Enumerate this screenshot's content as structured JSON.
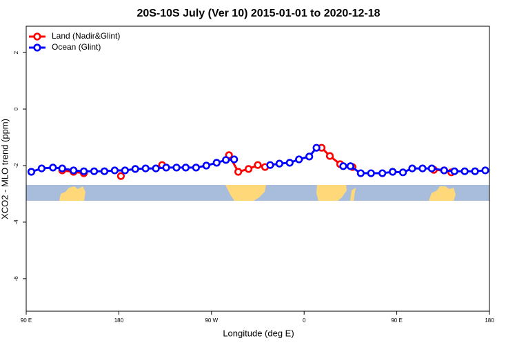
{
  "chart_data": {
    "type": "line",
    "title": "20S-10S July (Ver 10)   2015-01-01 to 2020-12-18",
    "x_label": "Longitude (deg E)",
    "y_label": "XCO2 - MLO trend (ppm)",
    "xlim": [
      90,
      540
    ],
    "xticks": [
      {
        "value": 90,
        "label": "90 E"
      },
      {
        "value": 180,
        "label": "180"
      },
      {
        "value": 270,
        "label": "90 W"
      },
      {
        "value": 360,
        "label": "0"
      },
      {
        "value": 450,
        "label": "90 E"
      },
      {
        "value": 540,
        "label": "180"
      }
    ],
    "ylim": [
      -7.15,
      2.93
    ],
    "yticks": [
      -6,
      -4,
      -2,
      0,
      2
    ],
    "legend": "top-left",
    "series": [
      {
        "name": "Land (Nadir&Glint)",
        "color": "#ff0000",
        "x": [
          125,
          136,
          146,
          null,
          182,
          null,
          222,
          null,
          287,
          296,
          306,
          315,
          322,
          null,
          377,
          385,
          395,
          407,
          null,
          486,
          496,
          503
        ],
        "values": [
          -2.17,
          -2.22,
          -2.27,
          null,
          -2.37,
          null,
          -1.98,
          null,
          -1.63,
          -2.22,
          -2.12,
          -1.98,
          -2.05,
          null,
          -1.37,
          -1.66,
          -1.95,
          -2.05,
          null,
          -2.15,
          -2.17,
          -2.24
        ]
      },
      {
        "name": "Ocean (Glint)",
        "color": "#0000ff",
        "x": [
          95,
          105,
          116,
          125,
          136,
          146,
          156,
          166,
          176,
          186,
          196,
          206,
          216,
          226,
          236,
          245,
          255,
          265,
          275,
          284,
          292,
          null,
          327,
          336,
          346,
          355,
          365,
          372,
          null,
          398,
          405,
          415,
          425,
          436,
          446,
          456,
          465,
          475,
          484,
          496,
          506,
          516,
          526,
          536
        ],
        "values": [
          -2.22,
          -2.1,
          -2.07,
          -2.1,
          -2.17,
          -2.2,
          -2.2,
          -2.2,
          -2.17,
          -2.17,
          -2.12,
          -2.1,
          -2.1,
          -2.07,
          -2.07,
          -2.07,
          -2.07,
          -2.0,
          -1.9,
          -1.8,
          -1.78,
          null,
          -1.98,
          -1.93,
          -1.9,
          -1.78,
          -1.68,
          -1.37,
          null,
          -2.02,
          -2.02,
          -2.27,
          -2.27,
          -2.27,
          -2.22,
          -2.24,
          -2.1,
          -2.1,
          -2.1,
          -2.17,
          -2.2,
          -2.2,
          -2.2,
          -2.17
        ]
      }
    ]
  }
}
